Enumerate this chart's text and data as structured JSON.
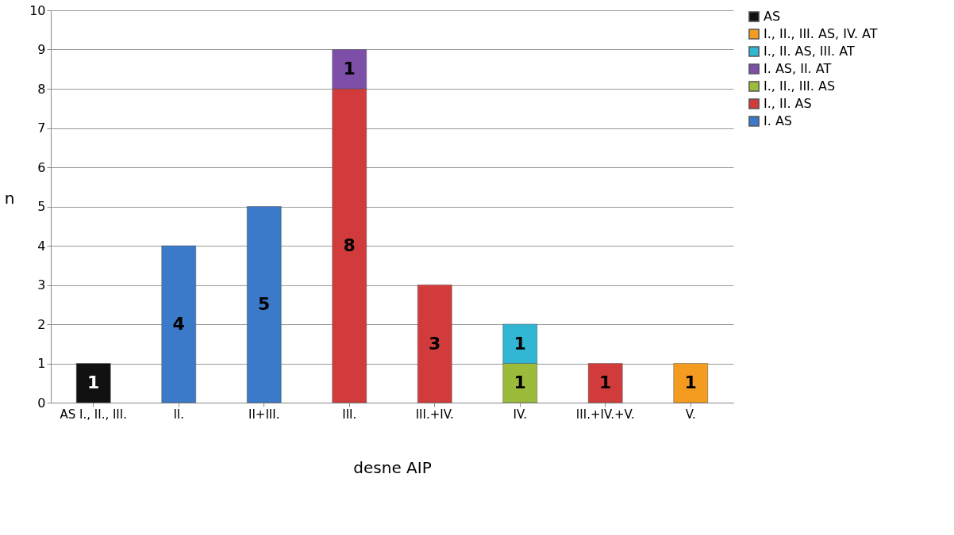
{
  "chart_data": {
    "type": "bar",
    "stacked": true,
    "xlabel": "desne AIP",
    "ylabel": "n",
    "categories": [
      "AS I., II., III.",
      "II.",
      "II+III.",
      "III.",
      "III.+IV.",
      "IV.",
      "III.+IV.+V.",
      "V."
    ],
    "series": [
      {
        "name": "I. AS",
        "color": "#3b7ac8",
        "values": [
          null,
          4,
          5,
          null,
          null,
          null,
          null,
          null
        ]
      },
      {
        "name": "I., II. AS",
        "color": "#d13b3b",
        "values": [
          null,
          null,
          null,
          8,
          3,
          null,
          1,
          null
        ]
      },
      {
        "name": "I., II., III. AS",
        "color": "#9bbb3b",
        "values": [
          null,
          null,
          null,
          null,
          null,
          1,
          null,
          null
        ]
      },
      {
        "name": "I. AS, II. AT",
        "color": "#7d4fa8",
        "values": [
          null,
          null,
          null,
          1,
          null,
          null,
          null,
          null
        ]
      },
      {
        "name": "I., II. AS, III. AT",
        "color": "#31b6d4",
        "values": [
          null,
          null,
          null,
          null,
          null,
          1,
          null,
          null
        ]
      },
      {
        "name": "I., II., III. AS, IV. AT",
        "color": "#f39c1f",
        "values": [
          null,
          null,
          null,
          null,
          null,
          null,
          null,
          1
        ]
      },
      {
        "name": "AS",
        "color": "#111111",
        "values": [
          1,
          null,
          null,
          null,
          null,
          null,
          null,
          null
        ]
      }
    ],
    "ylim": [
      0,
      10
    ],
    "yticks": [
      0,
      1,
      2,
      3,
      4,
      5,
      6,
      7,
      8,
      9,
      10
    ],
    "grid": "y",
    "legend": "right",
    "data_labels": true
  }
}
